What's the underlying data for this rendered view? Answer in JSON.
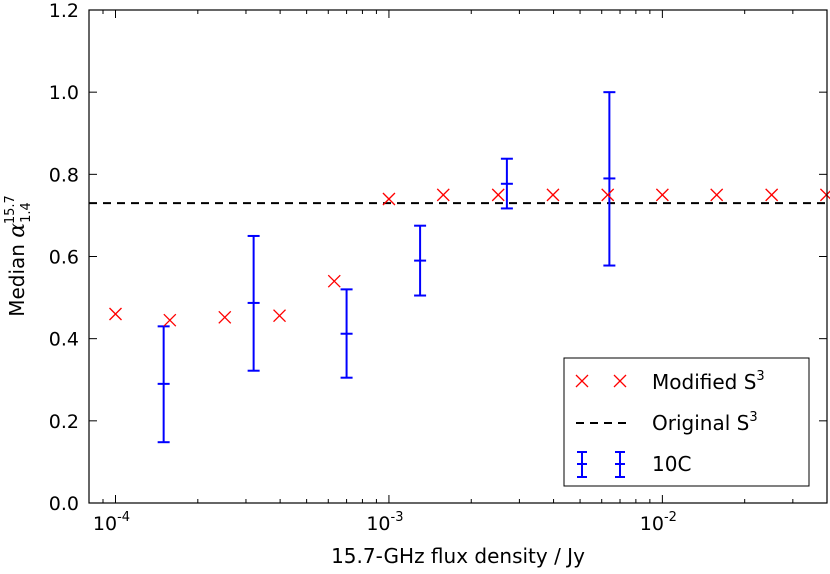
{
  "chart_data": {
    "type": "scatter",
    "title": "",
    "xlabel": "15.7-GHz flux density / Jy",
    "ylabel_prefix": "Median ",
    "ylabel_symbol": "α",
    "ylabel_sub": "1.4",
    "ylabel_sup": "15.7",
    "xscale": "log",
    "xlim": [
      8e-05,
      0.04
    ],
    "ylim": [
      0.0,
      1.2
    ],
    "yticks": [
      0.0,
      0.2,
      0.4,
      0.6,
      0.8,
      1.0,
      1.2
    ],
    "ytick_labels": [
      "0.0",
      "0.2",
      "0.4",
      "0.6",
      "0.8",
      "1.0",
      "1.2"
    ],
    "xticks_major": [
      {
        "value": 0.0001,
        "base": "10",
        "exp": "-4"
      },
      {
        "value": 0.001,
        "base": "10",
        "exp": "-3"
      },
      {
        "value": 0.01,
        "base": "10",
        "exp": "-2"
      }
    ],
    "series": [
      {
        "name": "Modified S",
        "name_sup": "3",
        "marker": "x",
        "color": "#ff0000",
        "x": [
          0.0001,
          0.000158,
          0.000251,
          0.000398,
          0.000631,
          0.001,
          0.00158,
          0.00251,
          0.00398,
          0.00631,
          0.01,
          0.0158,
          0.0251,
          0.0398
        ],
        "y": [
          0.46,
          0.445,
          0.452,
          0.456,
          0.54,
          0.74,
          0.75,
          0.75,
          0.75,
          0.75,
          0.75,
          0.75,
          0.75,
          0.75
        ]
      },
      {
        "name": "Original S",
        "name_sup": "3",
        "marker": "dashed-line",
        "color": "#000000",
        "y": 0.73
      },
      {
        "name": "10C",
        "marker": "errorbar",
        "color": "#0000ff",
        "x": [
          0.00015,
          0.00032,
          0.0007,
          0.0013,
          0.0027,
          0.0064
        ],
        "y": [
          0.29,
          0.487,
          0.412,
          0.59,
          0.777,
          0.79
        ],
        "y_low": [
          0.148,
          0.322,
          0.305,
          0.505,
          0.717,
          0.578
        ],
        "y_high": [
          0.43,
          0.65,
          0.52,
          0.675,
          0.838,
          1.0
        ]
      }
    ],
    "legend_position": "lower-right"
  }
}
